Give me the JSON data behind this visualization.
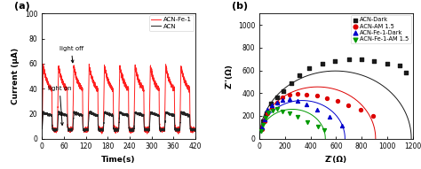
{
  "panel_a": {
    "title": "(a)",
    "xlabel": "Time(s)",
    "ylabel": "Current (μA)",
    "xlim": [
      0,
      420
    ],
    "ylim": [
      0,
      100
    ],
    "xticks": [
      0,
      60,
      120,
      180,
      240,
      300,
      360,
      420
    ],
    "yticks": [
      0,
      20,
      40,
      60,
      80,
      100
    ],
    "acn_fe_color": "#FF2020",
    "acn_color": "#222222",
    "legend_labels": [
      "ACN-Fe-1",
      "ACN"
    ]
  },
  "panel_b": {
    "title": "(b)",
    "xlabel": "Z'(Ω)",
    "ylabel": "Z''(Ω)",
    "xlim": [
      0,
      1200
    ],
    "ylim": [
      0,
      1100
    ],
    "xticks": [
      0,
      200,
      400,
      600,
      800,
      1000,
      1200
    ],
    "yticks": [
      0,
      200,
      400,
      600,
      800,
      1000
    ],
    "acn_dark_color": "#1a1a1a",
    "acn_am_color": "#DD0000",
    "acn_fe_dark_color": "#0000CC",
    "acn_fe_am_color": "#009900",
    "legend_labels": [
      "ACN-Dark",
      "ACN-AM 1.5",
      "ACN-Fe-1-Dark",
      "ACN-Fe-1-AM 1.5"
    ],
    "acn_dark_x": [
      30,
      55,
      90,
      140,
      190,
      250,
      310,
      390,
      490,
      590,
      700,
      800,
      900,
      1000,
      1100,
      1150
    ],
    "acn_dark_y": [
      150,
      220,
      305,
      360,
      420,
      490,
      560,
      620,
      660,
      680,
      700,
      695,
      685,
      660,
      640,
      578
    ],
    "acn_am_x": [
      20,
      40,
      65,
      95,
      135,
      180,
      235,
      295,
      370,
      450,
      530,
      610,
      695,
      790,
      890
    ],
    "acn_am_y": [
      85,
      155,
      225,
      270,
      320,
      360,
      385,
      395,
      390,
      375,
      355,
      330,
      295,
      252,
      200
    ],
    "acn_fe_dark_x": [
      20,
      38,
      65,
      95,
      135,
      178,
      235,
      295,
      370,
      450,
      550,
      645
    ],
    "acn_fe_dark_y": [
      95,
      170,
      250,
      290,
      320,
      340,
      345,
      332,
      298,
      252,
      188,
      115
    ],
    "acn_fe_am_x": [
      15,
      28,
      48,
      72,
      100,
      138,
      178,
      238,
      298,
      378,
      455,
      505
    ],
    "acn_fe_am_y": [
      65,
      125,
      183,
      228,
      248,
      258,
      242,
      222,
      188,
      143,
      103,
      73
    ],
    "acn_dark_R": 595,
    "acn_am_R": 455,
    "acn_fe_dark_R": 335,
    "acn_fe_am_R": 258
  }
}
